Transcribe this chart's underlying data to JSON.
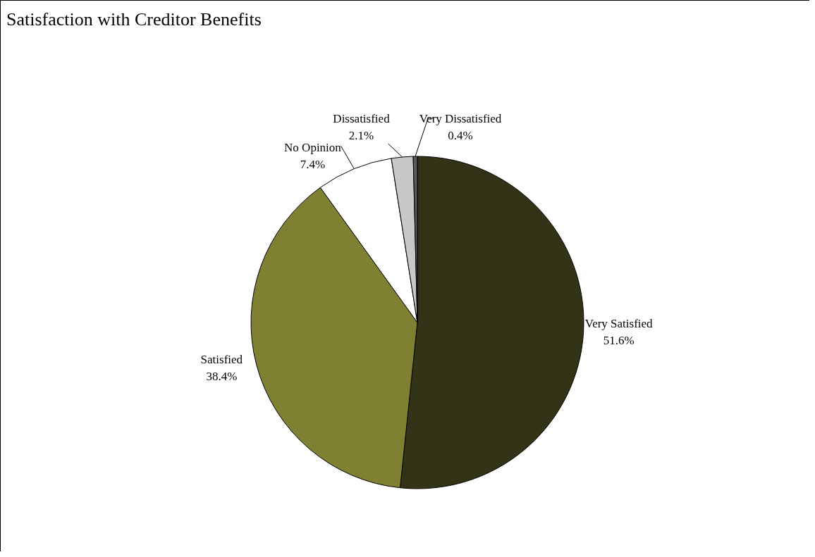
{
  "chart_data": {
    "type": "pie",
    "title": "Satisfaction with Creditor Benefits",
    "categories": [
      "Very Satisfied",
      "Satisfied",
      "No Opinion",
      "Dissatisfied",
      "Very Dissatisfied"
    ],
    "values": [
      51.6,
      38.4,
      7.4,
      2.1,
      0.4
    ],
    "colors": [
      "#333318",
      "#808033",
      "#ffffff",
      "#c8c8c8",
      "#595959"
    ],
    "value_labels": [
      "51.6%",
      "38.4%",
      "7.4%",
      "2.1%",
      "0.4%"
    ],
    "legend": false
  }
}
